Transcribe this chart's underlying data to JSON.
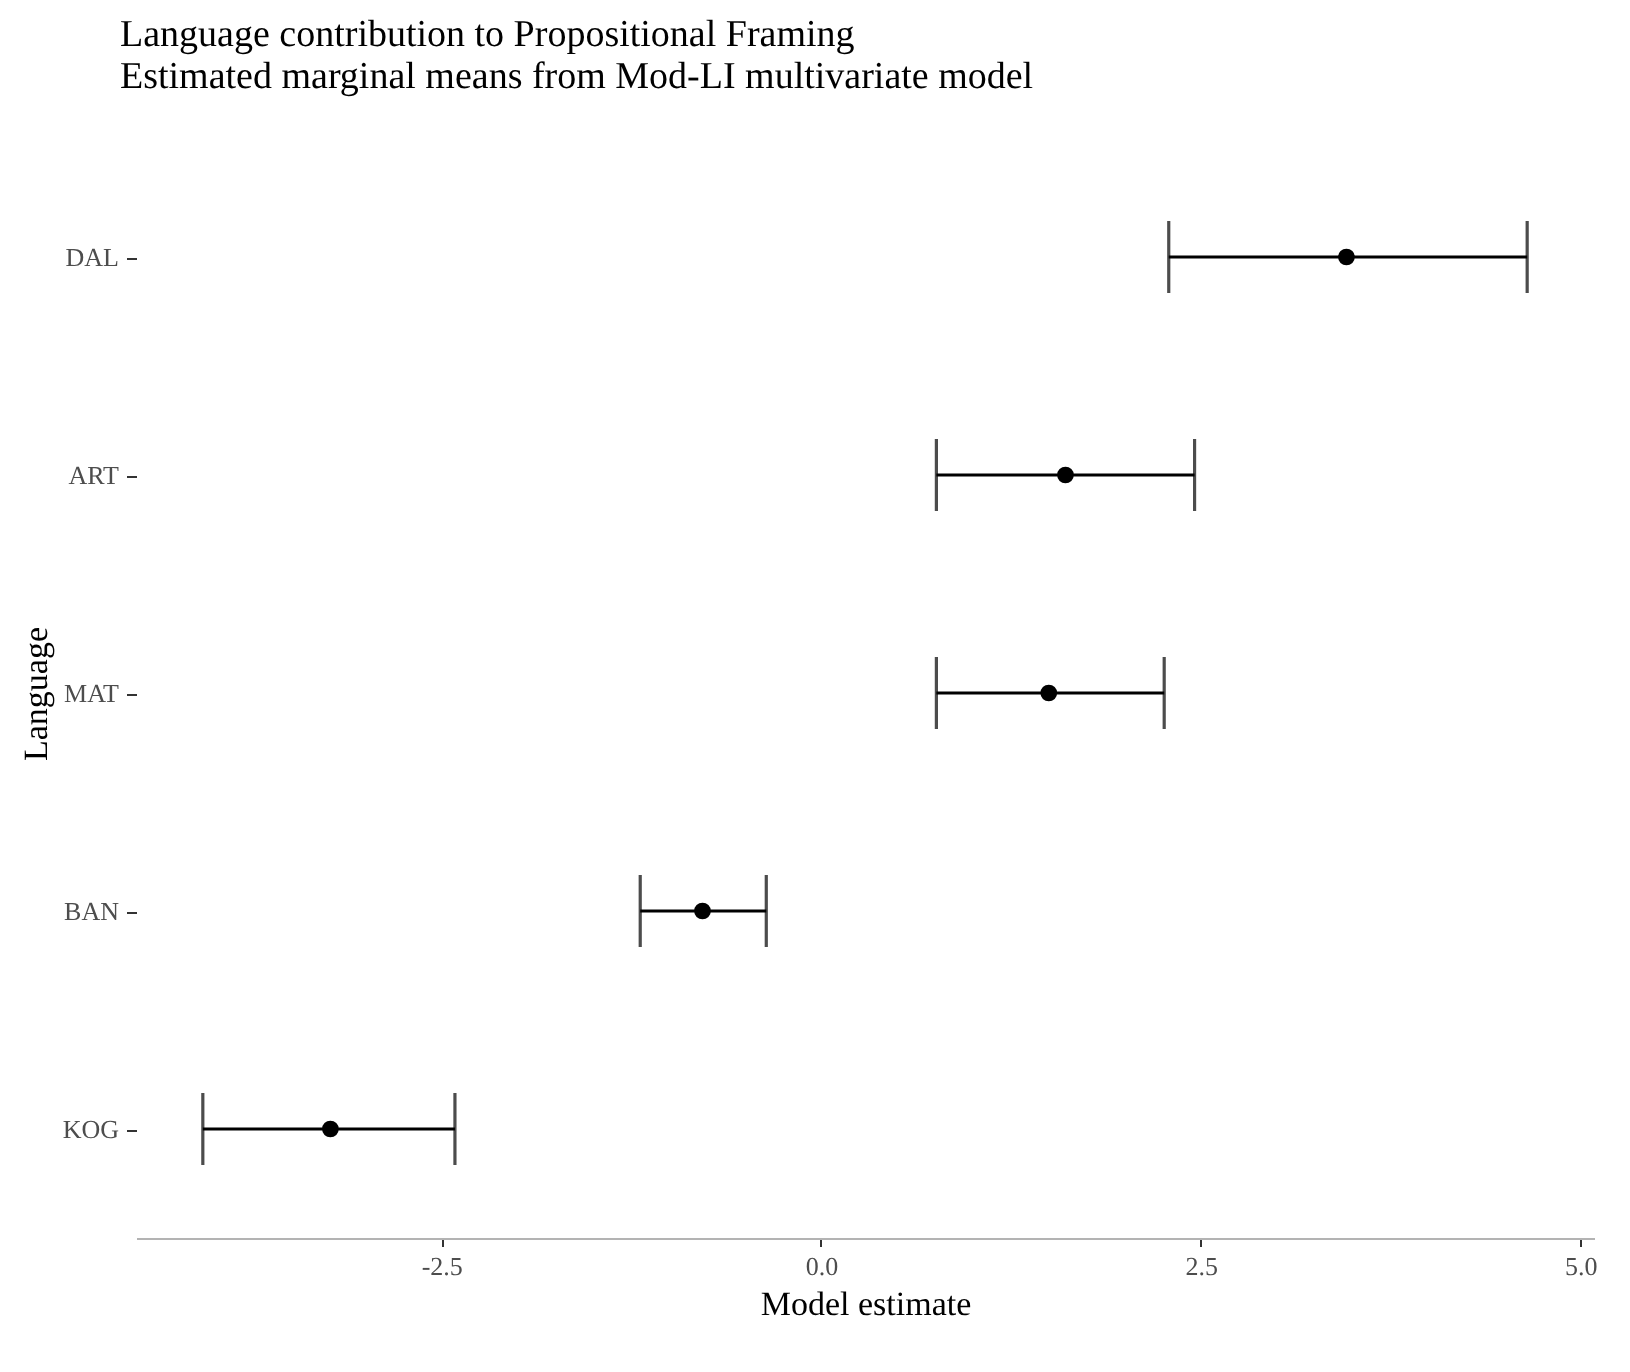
{
  "chart_data": {
    "type": "scatter",
    "orientation": "horizontal",
    "title": "Language contribution to Propositional Framing",
    "subtitle": "Estimated marginal means from Mod-LI multivariate model",
    "xlabel": "Model estimate",
    "ylabel": "Language",
    "categories": [
      "DAL",
      "ART",
      "MAT",
      "BAN",
      "KOG"
    ],
    "color": "#000000",
    "values": [
      3.46,
      1.61,
      1.5,
      -0.78,
      -3.23
    ],
    "errors": [
      [
        2.29,
        4.65
      ],
      [
        0.76,
        2.46
      ],
      [
        0.76,
        2.26
      ],
      [
        -1.19,
        -0.36
      ],
      [
        -4.07,
        -2.41
      ]
    ],
    "xlim": [
      -4.51,
      5.09
    ],
    "xticks": [
      -2.5,
      {
        "value": 0,
        "label": "0.0"
      },
      2.5,
      {
        "value": 5,
        "label": "5.0"
      }
    ],
    "marker": "circle",
    "grid": false
  }
}
